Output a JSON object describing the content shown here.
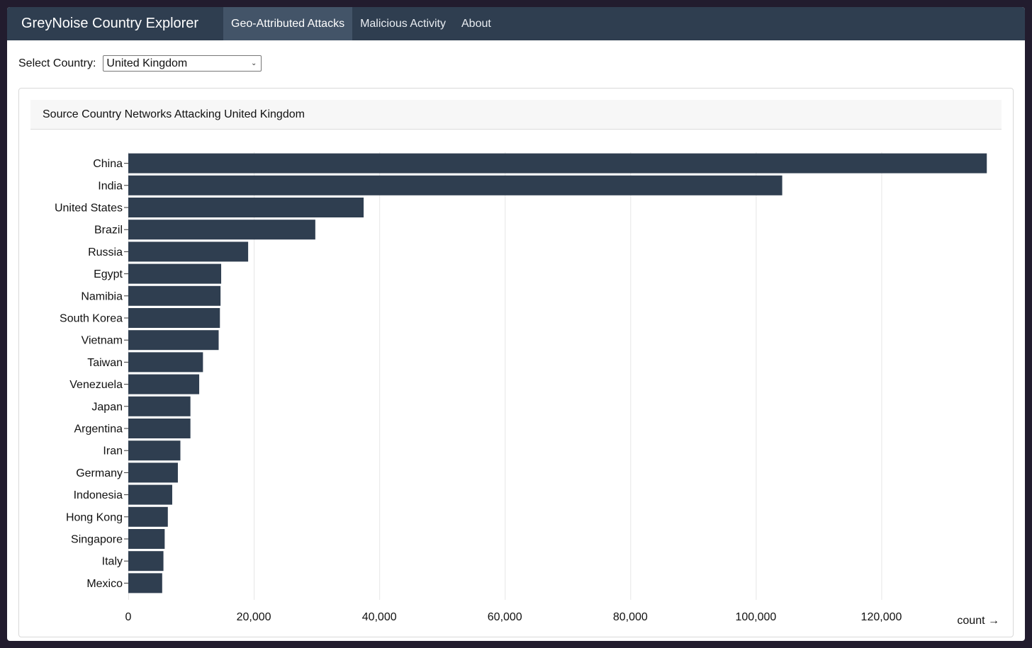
{
  "app": {
    "brand": "GreyNoise Country Explorer",
    "nav": [
      {
        "label": "Geo-Attributed Attacks",
        "active": true
      },
      {
        "label": "Malicious Activity",
        "active": false
      },
      {
        "label": "About",
        "active": false
      }
    ]
  },
  "selector": {
    "label": "Select Country:",
    "value": "United Kingdom"
  },
  "card": {
    "title": "Source Country Networks Attacking United Kingdom"
  },
  "chart_data": {
    "type": "bar",
    "orientation": "horizontal",
    "bar_color": "#2f3e50",
    "categories": [
      "China",
      "India",
      "United States",
      "Brazil",
      "Russia",
      "Egypt",
      "Namibia",
      "South Korea",
      "Vietnam",
      "Taiwan",
      "Venezuela",
      "Japan",
      "Argentina",
      "Iran",
      "Germany",
      "Indonesia",
      "Hong Kong",
      "Singapore",
      "Italy",
      "Mexico"
    ],
    "values": [
      136800,
      104200,
      37500,
      29800,
      19100,
      14800,
      14700,
      14600,
      14400,
      11900,
      11300,
      9900,
      9900,
      8300,
      7900,
      7000,
      6300,
      5800,
      5600,
      5400
    ],
    "xlabel": "count →",
    "xlim": [
      0,
      137000
    ],
    "xticks": [
      0,
      20000,
      40000,
      60000,
      80000,
      100000,
      120000
    ],
    "xtick_labels": [
      "0",
      "20,000",
      "40,000",
      "60,000",
      "80,000",
      "100,000",
      "120,000"
    ],
    "grid": "vertical"
  }
}
